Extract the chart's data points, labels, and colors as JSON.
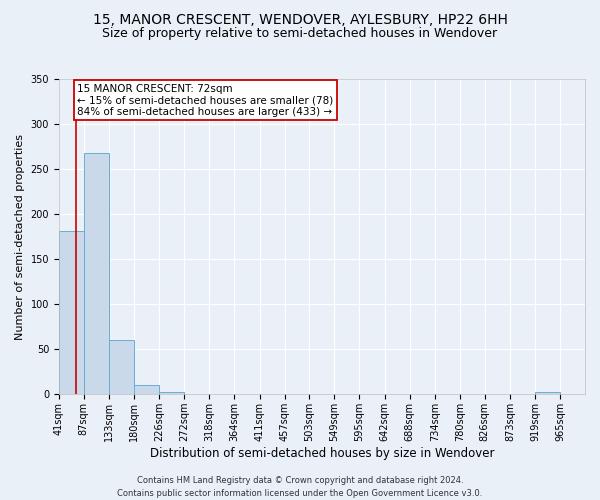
{
  "title": "15, MANOR CRESCENT, WENDOVER, AYLESBURY, HP22 6HH",
  "subtitle": "Size of property relative to semi-detached houses in Wendover",
  "xlabel": "Distribution of semi-detached houses by size in Wendover",
  "ylabel": "Number of semi-detached properties",
  "footer_line1": "Contains HM Land Registry data © Crown copyright and database right 2024.",
  "footer_line2": "Contains public sector information licensed under the Open Government Licence v3.0.",
  "bins": [
    41,
    87,
    133,
    180,
    226,
    272,
    318,
    364,
    411,
    457,
    503,
    549,
    595,
    642,
    688,
    734,
    780,
    826,
    873,
    919,
    965
  ],
  "bin_labels": [
    "41sqm",
    "87sqm",
    "133sqm",
    "180sqm",
    "226sqm",
    "272sqm",
    "318sqm",
    "364sqm",
    "411sqm",
    "457sqm",
    "503sqm",
    "549sqm",
    "595sqm",
    "642sqm",
    "688sqm",
    "734sqm",
    "780sqm",
    "826sqm",
    "873sqm",
    "919sqm",
    "965sqm"
  ],
  "bar_values": [
    181,
    268,
    60,
    10,
    3,
    0,
    0,
    0,
    0,
    0,
    0,
    0,
    0,
    0,
    0,
    0,
    0,
    0,
    0,
    3,
    0
  ],
  "bar_color": "#c9d9ea",
  "bar_edgecolor": "#6aadd5",
  "property_size": 72,
  "property_line_color": "#cc0000",
  "annotation_box_color": "#cc0000",
  "annotation_line1": "15 MANOR CRESCENT: 72sqm",
  "annotation_line2": "← 15% of semi-detached houses are smaller (78)",
  "annotation_line3": "84% of semi-detached houses are larger (433) →",
  "ylim": [
    0,
    350
  ],
  "yticks": [
    0,
    50,
    100,
    150,
    200,
    250,
    300,
    350
  ],
  "background_color": "#eaf0f8",
  "grid_color": "#ffffff",
  "title_fontsize": 10,
  "subtitle_fontsize": 9,
  "annotation_fontsize": 7.5,
  "ylabel_fontsize": 8,
  "xlabel_fontsize": 8.5,
  "tick_fontsize": 7,
  "footer_fontsize": 6
}
